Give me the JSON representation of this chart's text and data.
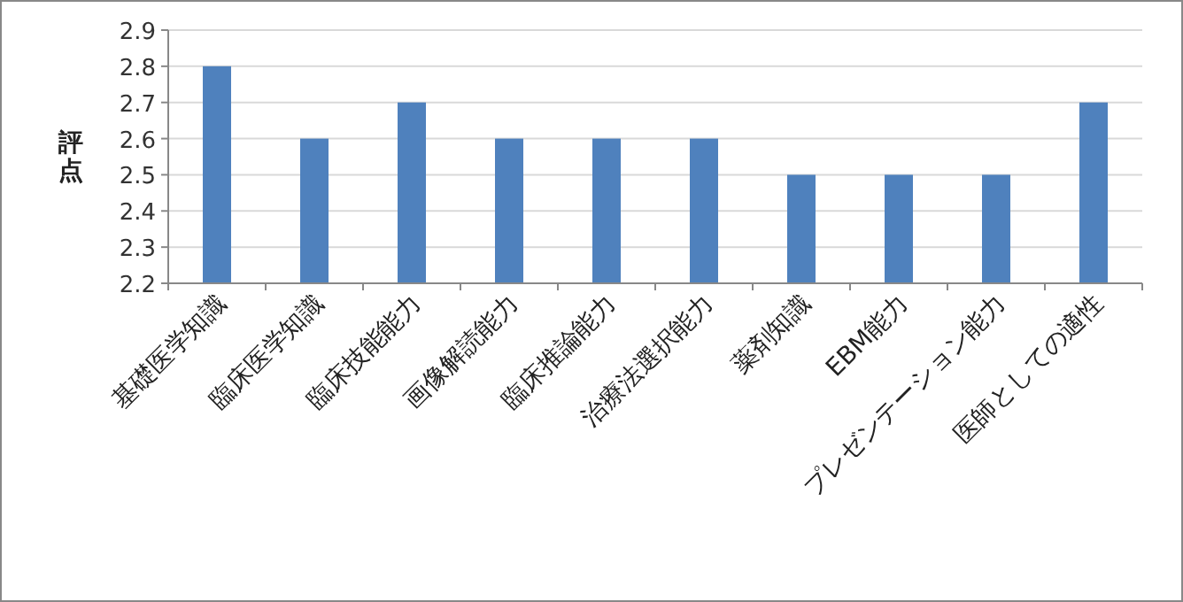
{
  "chart_data": {
    "type": "bar",
    "ylabel": "評点",
    "categories": [
      "基礎医学知識",
      "臨床医学知識",
      "臨床技能能力",
      "画像解読能力",
      "臨床推論能力",
      "治療法選択能力",
      "薬剤知識",
      "EBM能力",
      "プレゼンテーション能力",
      "医師としての適性"
    ],
    "values": [
      2.8,
      2.6,
      2.7,
      2.6,
      2.6,
      2.6,
      2.5,
      2.5,
      2.5,
      2.7
    ],
    "color": "#4f81bd",
    "ylim": [
      2.2,
      2.9
    ],
    "yticks": [
      2.2,
      2.3,
      2.4,
      2.5,
      2.6,
      2.7,
      2.8,
      2.9
    ],
    "grid": "y"
  }
}
